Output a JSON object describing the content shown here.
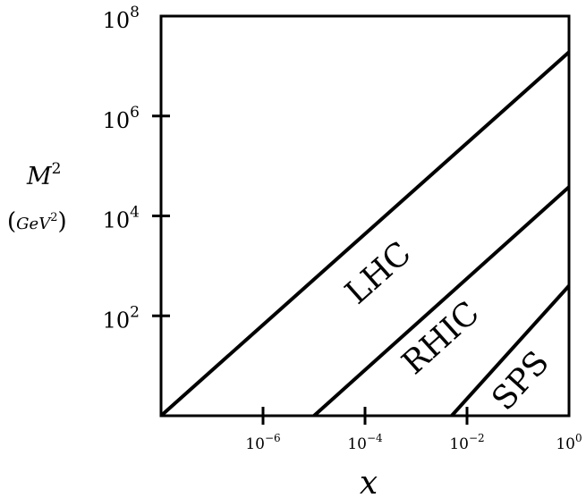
{
  "chart_data": {
    "type": "line",
    "title": "",
    "xlabel": "x",
    "ylabel_main": "M",
    "ylabel_sup": "2",
    "ylabel_unit_open": "(",
    "ylabel_unit_base": "GeV",
    "ylabel_unit_sup": "2",
    "ylabel_unit_close": ")",
    "x_scale": "log",
    "y_scale": "log",
    "xlim": [
      1e-08,
      1
    ],
    "ylim": [
      1,
      100000000.0
    ],
    "grid": false,
    "legend": "none",
    "x_ticks": [
      {
        "value": 1e-06,
        "base": "10",
        "exp": "−6"
      },
      {
        "value": 0.0001,
        "base": "10",
        "exp": "−4"
      },
      {
        "value": 0.01,
        "base": "10",
        "exp": "−2"
      },
      {
        "value": 1,
        "base": "10",
        "exp": "0"
      }
    ],
    "y_ticks": [
      {
        "value": 100,
        "base": "10",
        "exp": "2"
      },
      {
        "value": 10000,
        "base": "10",
        "exp": "4"
      },
      {
        "value": 1000000,
        "base": "10",
        "exp": "6"
      },
      {
        "value": 100000000,
        "base": "10",
        "exp": "8"
      }
    ],
    "series": [
      {
        "name": "LHC",
        "x": [
          1e-08,
          1
        ],
        "y": [
          1,
          19000000
        ],
        "label_at": [
          0.00025,
          500
        ]
      },
      {
        "name": "RHIC",
        "x": [
          1e-05,
          1
        ],
        "y": [
          1,
          38000
        ],
        "label_at": [
          0.0042,
          25
        ]
      },
      {
        "name": "SPS",
        "x": [
          0.005,
          1
        ],
        "y": [
          1,
          400
        ],
        "label_at": [
          0.16,
          3.6
        ]
      }
    ],
    "line_color": "#000000"
  }
}
